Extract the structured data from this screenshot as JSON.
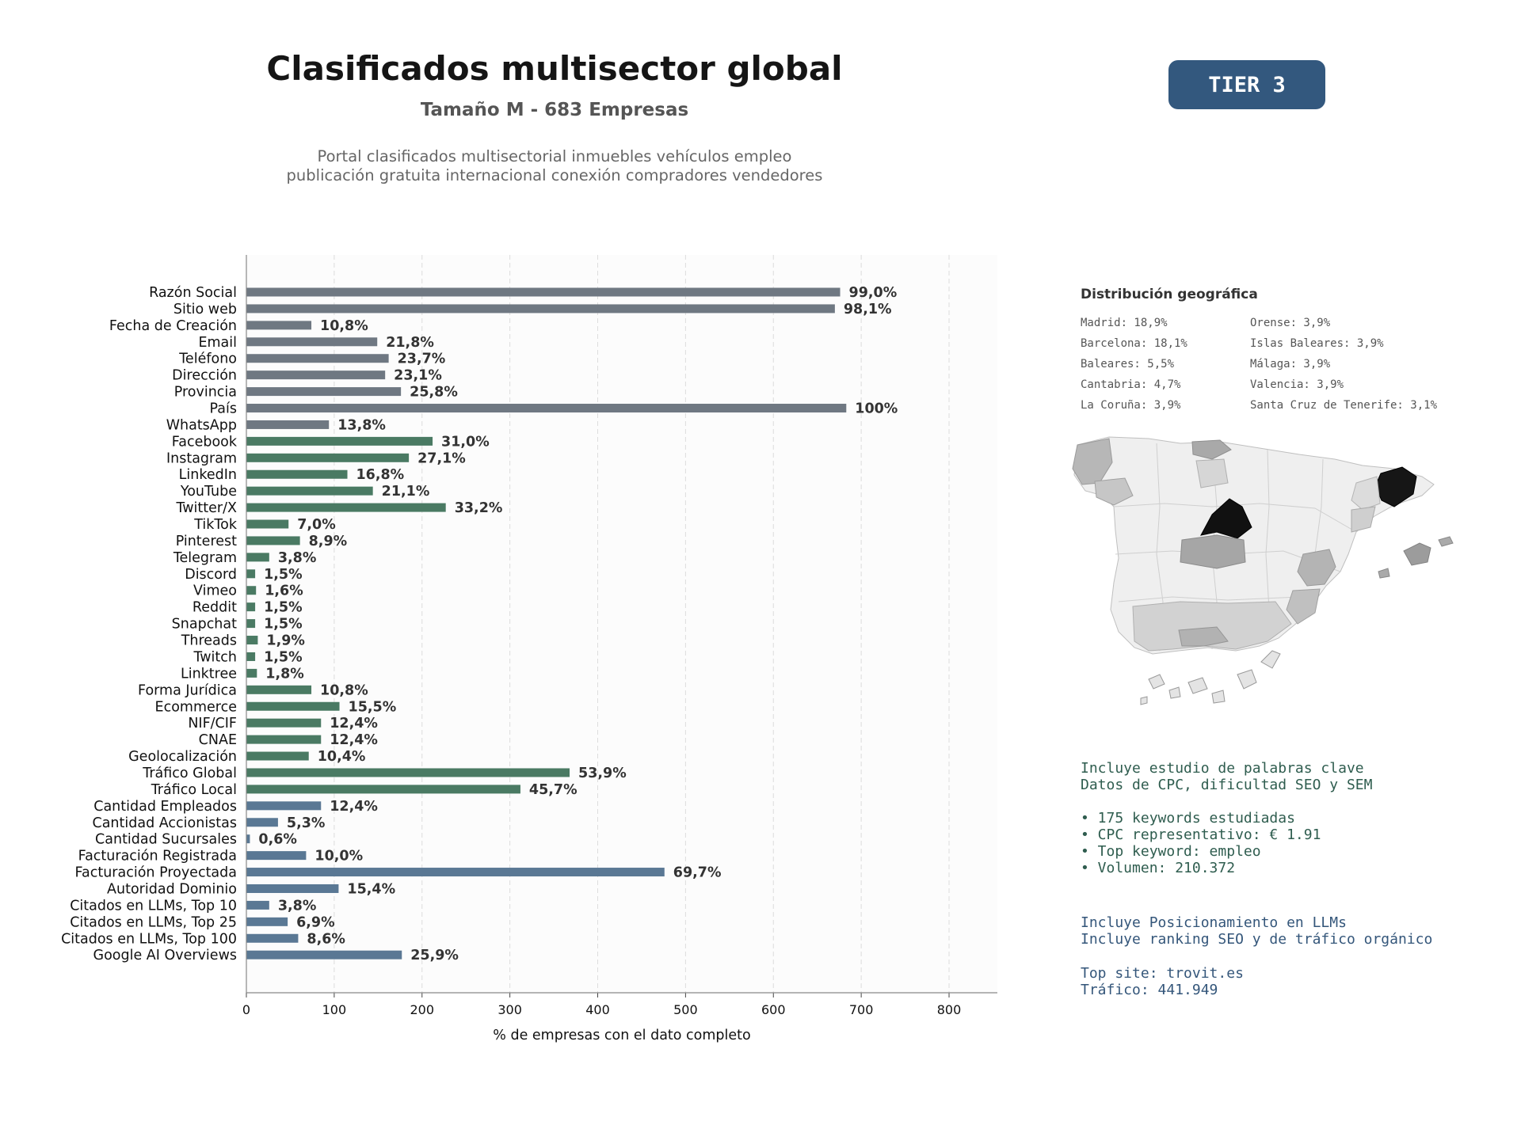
{
  "header": {
    "title": "Clasificados multisector global",
    "subtitle": "Tamaño M - 683 Empresas",
    "description_line1": "Portal clasificados multisectorial inmuebles vehículos empleo",
    "description_line2": "publicación gratuita internacional conexión compradores vendedores",
    "tier_badge": "TIER 3"
  },
  "colors": {
    "gray": "#6f7882",
    "green": "#4a7a63",
    "blue": "#5a7894",
    "tier_bg": "#33587e"
  },
  "chart_data": {
    "type": "bar",
    "orientation": "horizontal",
    "xlabel": "% de empresas con el dato completo",
    "xlim": [
      0,
      855
    ],
    "xticks": [
      0,
      100,
      200,
      300,
      400,
      500,
      600,
      700,
      800
    ],
    "grid": "vertical dashed",
    "categories": [
      "Razón Social",
      "Sitio web",
      "Fecha de Creación",
      "Email",
      "Teléfono",
      "Dirección",
      "Provincia",
      "País",
      "WhatsApp",
      "Facebook",
      "Instagram",
      "LinkedIn",
      "YouTube",
      "Twitter/X",
      "TikTok",
      "Pinterest",
      "Telegram",
      "Discord",
      "Vimeo",
      "Reddit",
      "Snapchat",
      "Threads",
      "Twitch",
      "Linktree",
      "Forma Jurídica",
      "Ecommerce",
      "NIF/CIF",
      "CNAE",
      "Geolocalización",
      "Tráfico Global",
      "Tráfico Local",
      "Cantidad Empleados",
      "Cantidad Accionistas",
      "Cantidad Sucursales",
      "Facturación Registrada",
      "Facturación Proyectada",
      "Autoridad Dominio",
      "Citados en LLMs, Top 10",
      "Citados en LLMs, Top 25",
      "Citados en LLMs, Top 100",
      "Google AI Overviews"
    ],
    "values": [
      676,
      670,
      74,
      149,
      162,
      158,
      176,
      683,
      94,
      212,
      185,
      115,
      144,
      227,
      48,
      61,
      26,
      10,
      11,
      10,
      10,
      13,
      10,
      12,
      74,
      106,
      85,
      85,
      71,
      368,
      312,
      85,
      36,
      4,
      68,
      476,
      105,
      26,
      47,
      59,
      177
    ],
    "labels": [
      "99,0%",
      "98,1%",
      "10,8%",
      "21,8%",
      "23,7%",
      "23,1%",
      "25,8%",
      "100%",
      "13,8%",
      "31,0%",
      "27,1%",
      "16,8%",
      "21,1%",
      "33,2%",
      "7,0%",
      "8,9%",
      "3,8%",
      "1,5%",
      "1,6%",
      "1,5%",
      "1,5%",
      "1,9%",
      "1,5%",
      "1,8%",
      "10,8%",
      "15,5%",
      "12,4%",
      "12,4%",
      "10,4%",
      "53,9%",
      "45,7%",
      "12,4%",
      "5,3%",
      "0,6%",
      "10,0%",
      "69,7%",
      "15,4%",
      "3,8%",
      "6,9%",
      "8,6%",
      "25,9%"
    ],
    "groups": [
      "gray",
      "gray",
      "gray",
      "gray",
      "gray",
      "gray",
      "gray",
      "gray",
      "gray",
      "green",
      "green",
      "green",
      "green",
      "green",
      "green",
      "green",
      "green",
      "green",
      "green",
      "green",
      "green",
      "green",
      "green",
      "green",
      "green",
      "green",
      "green",
      "green",
      "green",
      "green",
      "green",
      "blue",
      "blue",
      "blue",
      "blue",
      "blue",
      "blue",
      "blue",
      "blue",
      "blue",
      "blue"
    ]
  },
  "geo": {
    "title": "Distribución geográfica",
    "col1": [
      "Madrid: 18,9%",
      "Barcelona: 18,1%",
      "Baleares: 5,5%",
      "Cantabria: 4,7%",
      "La Coruña: 3,9%"
    ],
    "col2": [
      "Orense: 3,9%",
      "Islas Baleares: 3,9%",
      "Málaga: 3,9%",
      "Valencia: 3,9%",
      "Santa Cruz de Tenerife: 3,1%"
    ]
  },
  "keywords": {
    "line1": "Incluye estudio de palabras clave",
    "line2": "Datos de CPC, dificultad SEO y SEM",
    "b1": "• 175 keywords estudiadas",
    "b2": "• CPC representativo: € 1.91",
    "b3": "• Top keyword: empleo",
    "b4": "• Volumen: 210.372"
  },
  "llm": {
    "line1": "Incluye Posicionamiento en LLMs",
    "line2": "Incluye ranking SEO y de tráfico orgánico",
    "line3": "Top site: trovit.es",
    "line4": "Tráfico: 441.949"
  }
}
